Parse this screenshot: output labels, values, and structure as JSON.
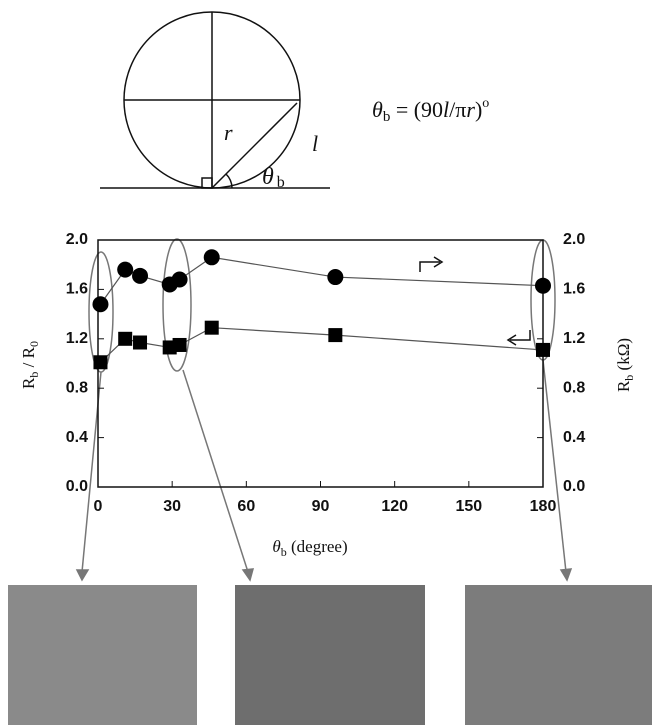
{
  "diagram": {
    "radius_label": "r",
    "arc_label": "l",
    "angle_label": [
      "θ",
      "b"
    ],
    "formula": [
      "θ",
      "b",
      " = (90",
      "l",
      "/π",
      "r",
      ")",
      "o"
    ]
  },
  "chart_data": {
    "type": "scatter",
    "xlabel": [
      "θ",
      "b",
      " (degree)"
    ],
    "ylabel": [
      "R",
      "b",
      " / R",
      "0"
    ],
    "y2label": [
      "R",
      "b",
      " (kΩ)"
    ],
    "xlim": [
      0,
      180
    ],
    "xticks": [
      0,
      30,
      60,
      90,
      120,
      150,
      180
    ],
    "ylim": [
      0,
      2
    ],
    "yticks": [
      {
        "value": 0,
        "label": "0.0"
      },
      0.4,
      0.8,
      1.2,
      1.6,
      {
        "value": 2,
        "label": "2.0"
      }
    ],
    "y2lim": [
      0,
      2
    ],
    "y2ticks": [
      {
        "value": 0,
        "label": "0.0"
      },
      0.4,
      0.8,
      1.2,
      1.6,
      {
        "value": 2,
        "label": "2.0"
      }
    ],
    "series": [
      {
        "color": "#000000",
        "marker": "square",
        "x": [
          1,
          11,
          17,
          29,
          33,
          46,
          96,
          180
        ],
        "values": [
          1.01,
          1.2,
          1.17,
          1.13,
          1.15,
          1.29,
          1.23,
          1.11
        ]
      },
      {
        "color": "#000000",
        "marker": "circle",
        "axis": "y2",
        "x": [
          1,
          11,
          17,
          29,
          33,
          46,
          96,
          180
        ],
        "values": [
          1.48,
          1.76,
          1.71,
          1.64,
          1.68,
          1.86,
          1.7,
          1.63
        ]
      }
    ]
  }
}
